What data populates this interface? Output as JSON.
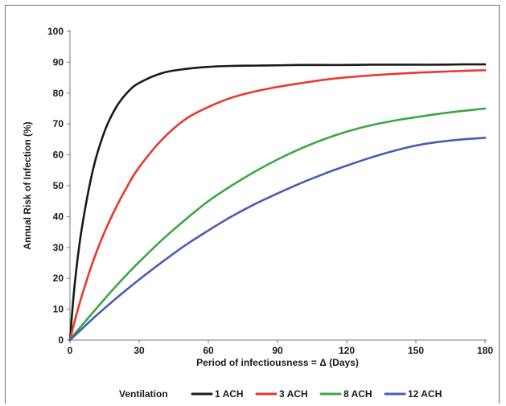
{
  "chart_data": {
    "type": "line",
    "title": "",
    "xlabel": "Period of infectiousness = Δ (Days)",
    "ylabel": "Annual Risk of Infection (%)",
    "xlim": [
      0,
      180
    ],
    "ylim": [
      0,
      100
    ],
    "x_ticks": [
      0,
      30,
      60,
      90,
      120,
      150,
      180
    ],
    "y_ticks": [
      0,
      10,
      20,
      30,
      40,
      50,
      60,
      70,
      80,
      90,
      100
    ],
    "grid": false,
    "legend": {
      "title": "Ventilation",
      "placement": "bottom"
    },
    "x": [
      0,
      2,
      5,
      10,
      15,
      20,
      25,
      30,
      40,
      50,
      60,
      70,
      80,
      90,
      100,
      110,
      120,
      130,
      140,
      150,
      160,
      170,
      180
    ],
    "series": [
      {
        "name": "1 ACH",
        "color": "#1a1a1a",
        "values": [
          0,
          17.7,
          35.6,
          55.3,
          67.6,
          75.4,
          80.3,
          83.3,
          86.5,
          87.8,
          88.5,
          88.8,
          88.9,
          89.0,
          89.1,
          89.1,
          89.1,
          89.2,
          89.2,
          89.2,
          89.2,
          89.3,
          89.3
        ]
      },
      {
        "name": "3 ACH",
        "color": "#e8382f",
        "values": [
          0,
          6.0,
          14.0,
          25.5,
          35.0,
          43.0,
          50.0,
          56.0,
          65.0,
          71.5,
          75.5,
          78.5,
          80.5,
          82.0,
          83.2,
          84.3,
          85.1,
          85.7,
          86.2,
          86.6,
          86.9,
          87.2,
          87.4
        ]
      },
      {
        "name": "8 ACH",
        "color": "#3aa843",
        "values": [
          0,
          2.0,
          4.6,
          9.0,
          13.3,
          17.5,
          21.5,
          25.3,
          32.5,
          39.0,
          45.0,
          50.0,
          54.5,
          58.5,
          62.0,
          65.0,
          67.5,
          69.5,
          71.0,
          72.2,
          73.3,
          74.2,
          75.0
        ]
      },
      {
        "name": "12 ACH",
        "color": "#4a5cb5",
        "values": [
          0,
          1.4,
          3.5,
          7.0,
          10.3,
          13.5,
          16.6,
          19.6,
          25.3,
          30.7,
          35.5,
          40.0,
          44.0,
          47.5,
          50.8,
          53.8,
          56.5,
          59.0,
          61.2,
          63.0,
          64.2,
          65.0,
          65.5
        ]
      }
    ]
  }
}
